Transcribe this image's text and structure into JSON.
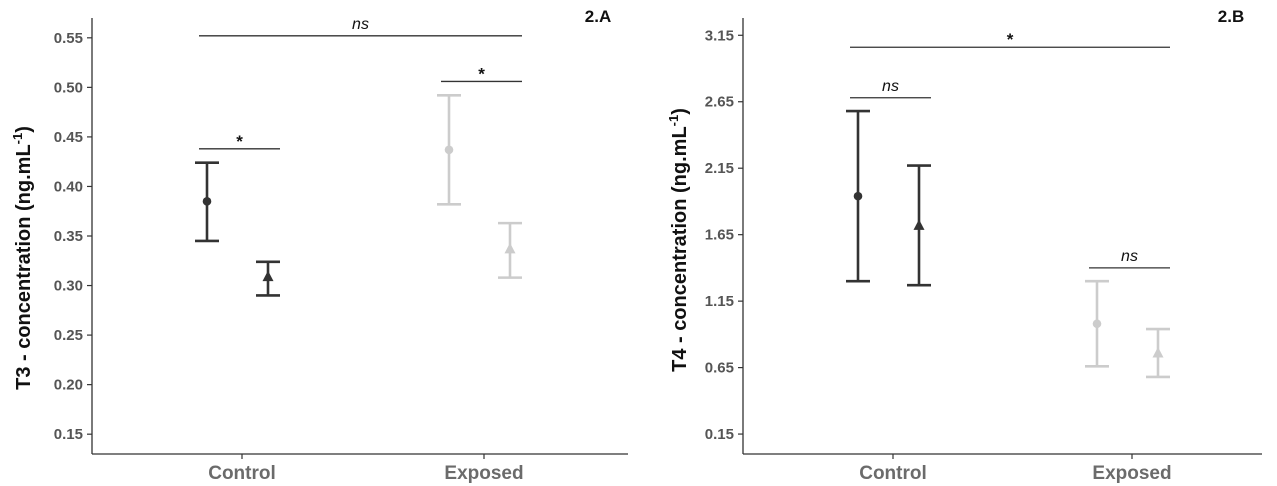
{
  "chart_data": [
    {
      "type": "scatter",
      "panel": "2.A",
      "ylabel_main": "T3 -  concentration (ng.mL",
      "ylabel_sup": "-1",
      "ylabel_close": ")",
      "categories": [
        "Control",
        "Exposed"
      ],
      "ylim": [
        0.13,
        0.57
      ],
      "yticks": [
        "0.15",
        "0.20",
        "0.25",
        "0.30",
        "0.35",
        "0.40",
        "0.45",
        "0.50",
        "0.55"
      ],
      "points": [
        {
          "category": "Control",
          "slot": 0,
          "marker": "circle",
          "color": "#333333",
          "mean": 0.385,
          "lower": 0.345,
          "upper": 0.424
        },
        {
          "category": "Control",
          "slot": 1,
          "marker": "triangle",
          "color": "#333333",
          "mean": 0.309,
          "lower": 0.29,
          "upper": 0.324
        },
        {
          "category": "Exposed",
          "slot": 0,
          "marker": "circle",
          "color": "#cccccc",
          "mean": 0.437,
          "lower": 0.382,
          "upper": 0.492
        },
        {
          "category": "Exposed",
          "slot": 1,
          "marker": "triangle",
          "color": "#cccccc",
          "mean": 0.337,
          "lower": 0.308,
          "upper": 0.363
        }
      ],
      "annotations": [
        {
          "label": "*",
          "style": "star",
          "y": 0.438,
          "from_cat": "Control",
          "from_slot": 0,
          "to_cat": "Control",
          "to_slot": 1
        },
        {
          "label": "*",
          "style": "star",
          "y": 0.506,
          "from_cat": "Exposed",
          "from_slot": 0,
          "to_cat": "Exposed",
          "to_slot": 1
        },
        {
          "label": "ns",
          "style": "ns",
          "y": 0.552,
          "from_cat": "Control",
          "from_slot": 0,
          "to_cat": "Exposed",
          "to_slot": 1
        }
      ]
    },
    {
      "type": "scatter",
      "panel": "2.B",
      "ylabel_main": "T4 -  concentration (ng.mL",
      "ylabel_sup": "-1",
      "ylabel_close": ")",
      "categories": [
        "Control",
        "Exposed"
      ],
      "ylim": [
        0.0,
        3.28
      ],
      "yticks": [
        "0.15",
        "0.65",
        "1.15",
        "1.65",
        "2.15",
        "2.65",
        "3.15"
      ],
      "points": [
        {
          "category": "Control",
          "slot": 0,
          "marker": "circle",
          "color": "#333333",
          "mean": 1.94,
          "lower": 1.3,
          "upper": 2.58
        },
        {
          "category": "Control",
          "slot": 1,
          "marker": "triangle",
          "color": "#333333",
          "mean": 1.72,
          "lower": 1.27,
          "upper": 2.17
        },
        {
          "category": "Exposed",
          "slot": 0,
          "marker": "circle",
          "color": "#cccccc",
          "mean": 0.98,
          "lower": 0.66,
          "upper": 1.3
        },
        {
          "category": "Exposed",
          "slot": 1,
          "marker": "triangle",
          "color": "#cccccc",
          "mean": 0.76,
          "lower": 0.58,
          "upper": 0.94
        }
      ],
      "annotations": [
        {
          "label": "ns",
          "style": "ns",
          "y": 2.68,
          "from_cat": "Control",
          "from_slot": 0,
          "to_cat": "Control",
          "to_slot": 1
        },
        {
          "label": "ns",
          "style": "ns",
          "y": 1.4,
          "from_cat": "Exposed",
          "from_slot": 0,
          "to_cat": "Exposed",
          "to_slot": 1
        },
        {
          "label": "*",
          "style": "star",
          "y": 3.06,
          "from_cat": "Control",
          "from_slot": 0,
          "to_cat": "Exposed",
          "to_slot": 1
        }
      ]
    }
  ]
}
